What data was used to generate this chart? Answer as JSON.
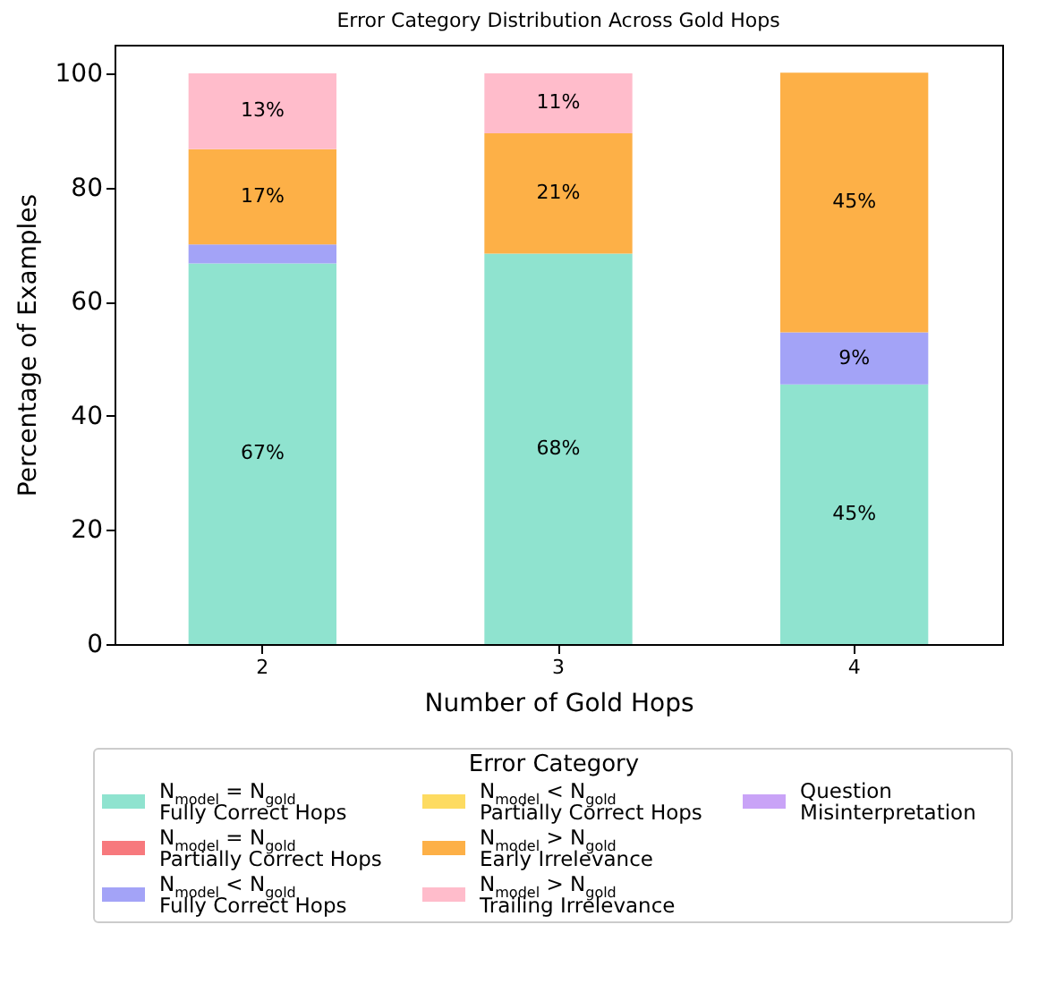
{
  "chart_data": {
    "type": "bar",
    "title": "Error Category Distribution Across Gold Hops",
    "xlabel": "Number of Gold Hops",
    "ylabel": "Percentage of Examples",
    "legend_title": "Error Category",
    "categories": [
      "2",
      "3",
      "4"
    ],
    "stacked": true,
    "ylim": [
      0,
      105
    ],
    "yticks": [
      0,
      20,
      40,
      60,
      80,
      100
    ],
    "legend": "bottom",
    "series": [
      {
        "name": "N$_{model}$ = N$_{gold}$\nFully Correct Hops",
        "color": "#8fe3cf",
        "values": [
          66.7,
          68.4,
          45.5
        ],
        "value_labels": [
          "67%",
          "68%",
          "45%"
        ]
      },
      {
        "name": "N$_{model}$ = N$_{gold}$\nPartially Correct Hops",
        "color": "#f7797d",
        "values": [
          0,
          0,
          0
        ],
        "value_labels": [
          null,
          null,
          null
        ]
      },
      {
        "name": "N$_{model}$ < N$_{gold}$\nFully Correct Hops",
        "color": "#a3a3f7",
        "values": [
          3.3,
          0,
          9.1
        ],
        "value_labels": [
          null,
          null,
          "9%"
        ]
      },
      {
        "name": "N$_{model}$ < N$_{gold}$\nPartially Correct Hops",
        "color": "#fddb61",
        "values": [
          0,
          0,
          0
        ],
        "value_labels": [
          null,
          null,
          null
        ]
      },
      {
        "name": "N$_{model}$ > N$_{gold}$\nEarly Irrelevance",
        "color": "#fdb047",
        "values": [
          16.7,
          21.1,
          45.5
        ],
        "value_labels": [
          "17%",
          "21%",
          "45%"
        ]
      },
      {
        "name": "N$_{model}$ > N$_{gold}$\nTrailing Irrelevance",
        "color": "#ffbccb",
        "values": [
          13.3,
          10.5,
          0
        ],
        "value_labels": [
          "13%",
          "11%",
          null
        ]
      },
      {
        "name": "Question\nMisinterpretation",
        "color": "#c9a3f7",
        "values": [
          0,
          0,
          0
        ],
        "value_labels": [
          null,
          null,
          null
        ]
      }
    ]
  }
}
